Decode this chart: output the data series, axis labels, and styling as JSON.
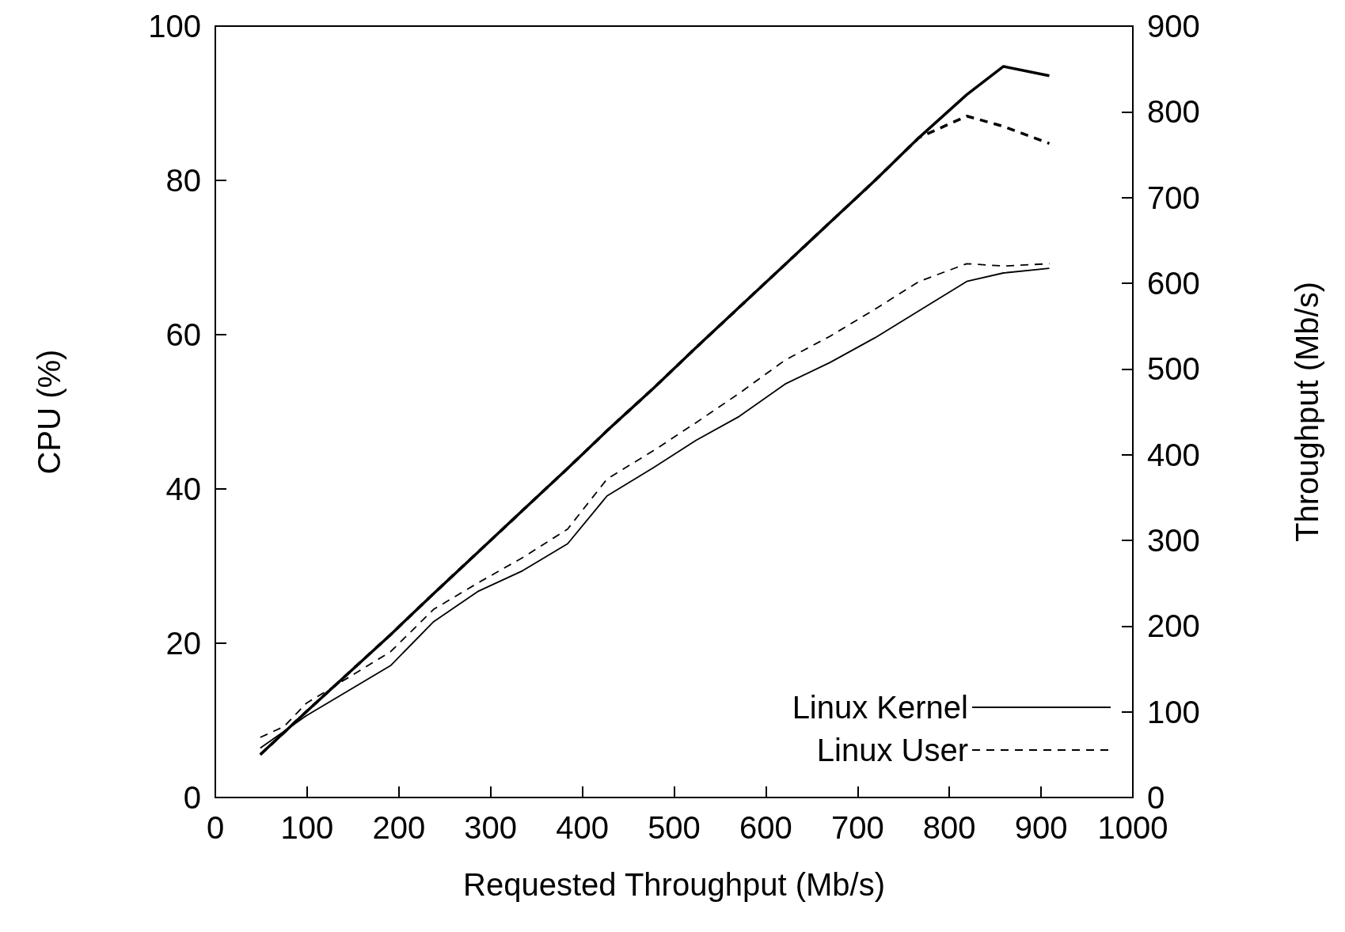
{
  "chart_data": {
    "type": "line",
    "xlabel": "Requested Throughput (Mb/s)",
    "ylabel": "CPU (%)",
    "y2label": "Throughput (Mb/s)",
    "xlim": [
      0,
      1000
    ],
    "xticks": [
      0,
      100,
      200,
      300,
      400,
      500,
      600,
      700,
      800,
      900,
      1000
    ],
    "ylim": [
      0,
      100
    ],
    "yticks": [
      0,
      20,
      40,
      60,
      80,
      100
    ],
    "y2lim": [
      0,
      900
    ],
    "y2ticks": [
      0,
      100,
      200,
      300,
      400,
      500,
      600,
      700,
      800,
      900
    ],
    "legend": "bottom right",
    "grid": false,
    "marker": "none",
    "series": [
      {
        "name": "Linux Kernel",
        "color": "#000000",
        "line_style": "solid",
        "axis": "y2",
        "x": [
          49,
          99,
          191,
          238,
          286,
          335,
          384,
          427,
          478,
          524,
          571,
          621,
          670,
          719,
          767,
          819,
          859,
          909
        ],
        "values": [
          50,
          100,
          190,
          238,
          286,
          335,
          384,
          428,
          478,
          525,
          572,
          622,
          671,
          720,
          770,
          820,
          853,
          842
        ]
      },
      {
        "name": "Linux User",
        "color": "#000000",
        "line_style": "dashed",
        "axis": "y2",
        "x": [
          49,
          99,
          191,
          238,
          286,
          335,
          384,
          427,
          478,
          524,
          571,
          621,
          670,
          719,
          767,
          819,
          859,
          909
        ],
        "values": [
          50,
          100,
          190,
          238,
          286,
          335,
          384,
          428,
          478,
          525,
          572,
          622,
          671,
          720,
          770,
          795,
          783,
          763
        ]
      },
      {
        "color": "#000000",
        "line_style": "solid",
        "x": [
          49,
          99,
          191,
          238,
          286,
          335,
          384,
          427,
          478,
          524,
          571,
          621,
          670,
          719,
          767,
          819,
          859,
          909
        ],
        "values": [
          6.4,
          10.6,
          17.1,
          22.8,
          26.7,
          29.4,
          32.9,
          39.1,
          42.8,
          46.3,
          49.4,
          53.6,
          56.4,
          59.6,
          63.1,
          66.9,
          68,
          68.6
        ]
      },
      {
        "color": "#000000",
        "line_style": "dashed",
        "x": [
          49,
          75,
          99,
          191,
          238,
          286,
          335,
          384,
          427,
          478,
          524,
          571,
          621,
          670,
          719,
          767,
          819,
          859,
          909
        ],
        "values": [
          7.8,
          9.2,
          12.2,
          18.9,
          24.4,
          27.8,
          31.1,
          34.8,
          41.3,
          45,
          48.6,
          52.4,
          56.7,
          59.8,
          63.3,
          66.9,
          69.2,
          68.9,
          69.2
        ]
      }
    ]
  }
}
